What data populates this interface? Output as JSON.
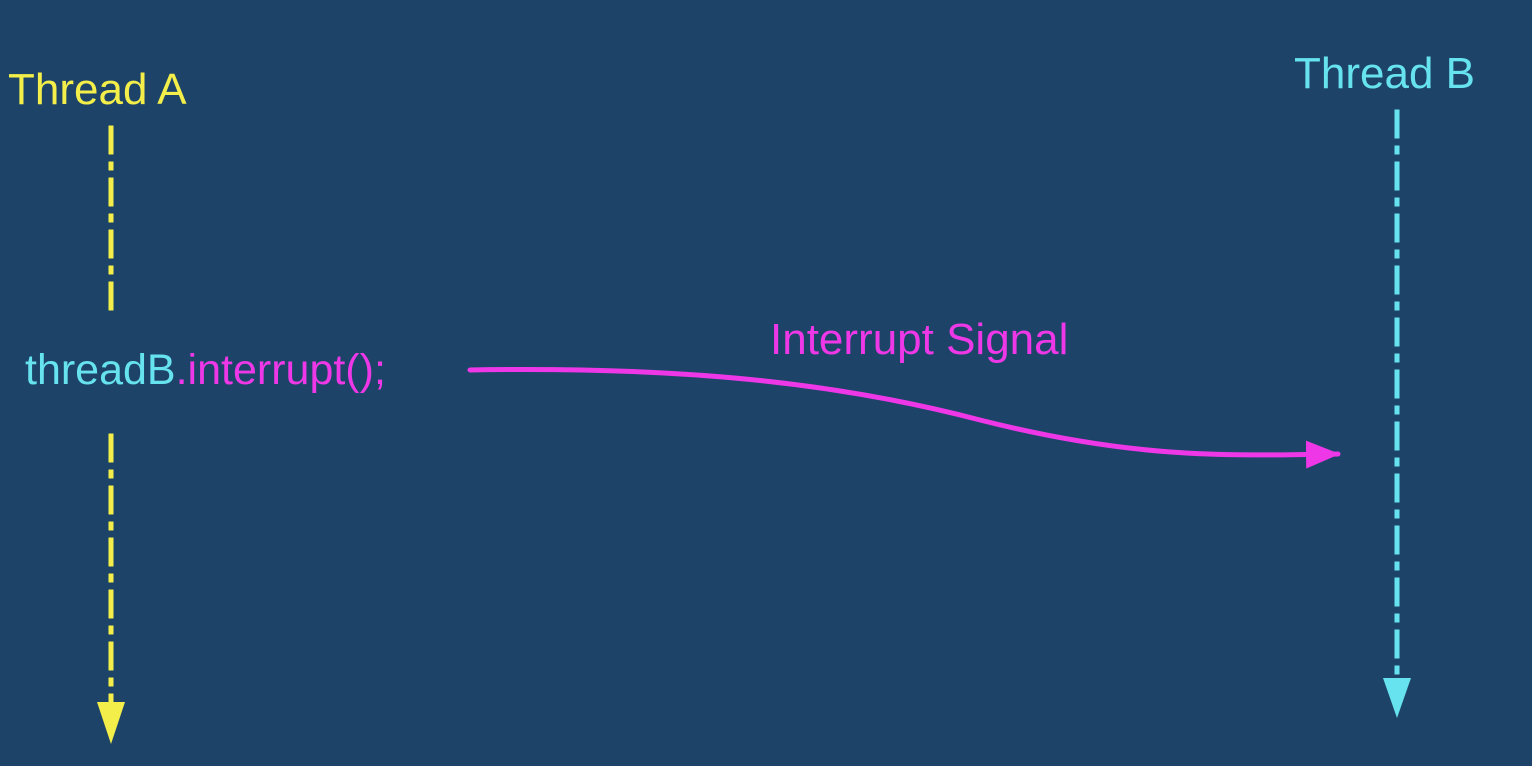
{
  "colors": {
    "background": "#1d4468",
    "thread_a": "#f3ee49",
    "thread_b": "#66e3ef",
    "signal": "#ee38e8"
  },
  "threads": {
    "a": {
      "title": "Thread A"
    },
    "b": {
      "title": "Thread B"
    }
  },
  "call": {
    "object": "threadB",
    "method": ".interrupt();"
  },
  "signal": {
    "label": "Interrupt Signal"
  }
}
